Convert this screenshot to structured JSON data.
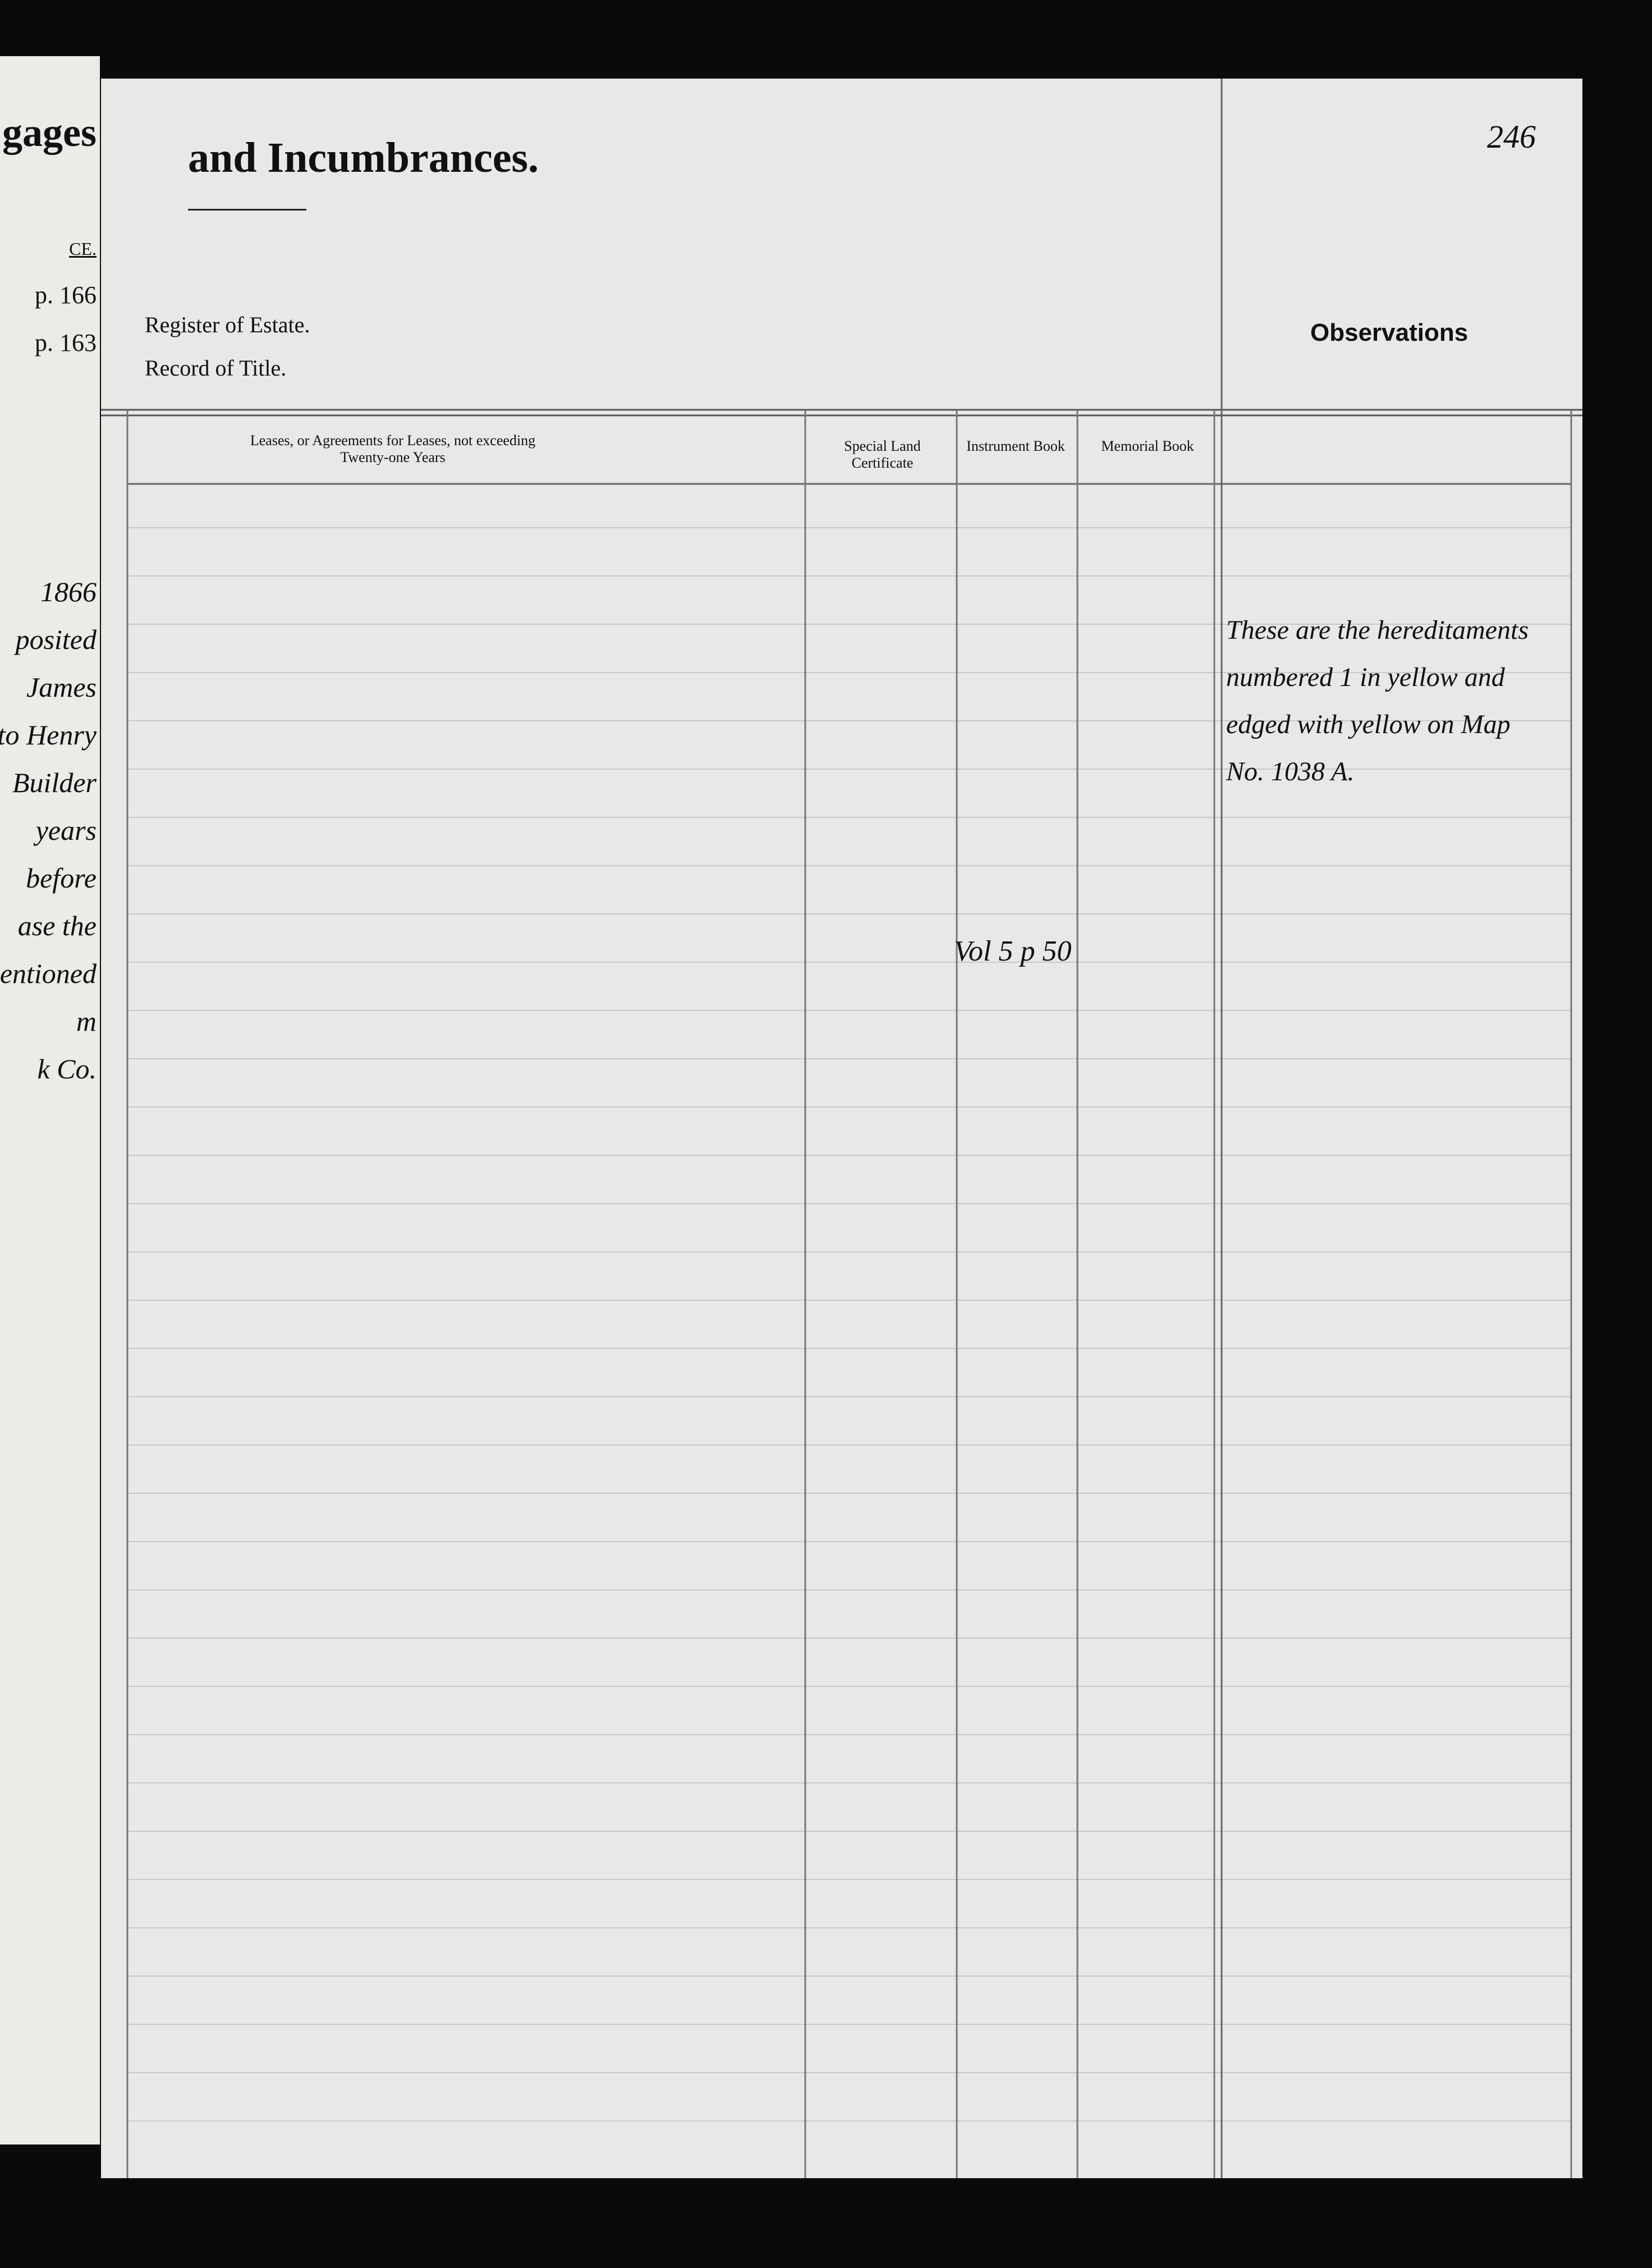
{
  "left_page": {
    "heading": "gages",
    "column_label": "CE.",
    "refs": [
      "p. 166",
      "p. 163"
    ],
    "handwriting": [
      "1866",
      "posited",
      "James",
      "is to Henry",
      "Builder",
      "years",
      "before",
      "ase the",
      "entioned",
      "m",
      "k Co."
    ]
  },
  "header": {
    "title": "and Incumbrances.",
    "page_number": "246",
    "register_label": "Register of Estate.",
    "record_label": "Record of Title.",
    "observations_label": "Observations"
  },
  "columns": [
    "Leases, or Agreements for Leases, not exceeding Twenty-one Years",
    "Special Land Certificate",
    "Instrument Book",
    "Memorial Book"
  ],
  "entries": {
    "instrument_book": "Vol 5 p 50"
  },
  "observations": [
    "These are the hereditaments",
    "numbered 1 in yellow and",
    "edged with yellow on Map",
    "No. 1038 A."
  ]
}
